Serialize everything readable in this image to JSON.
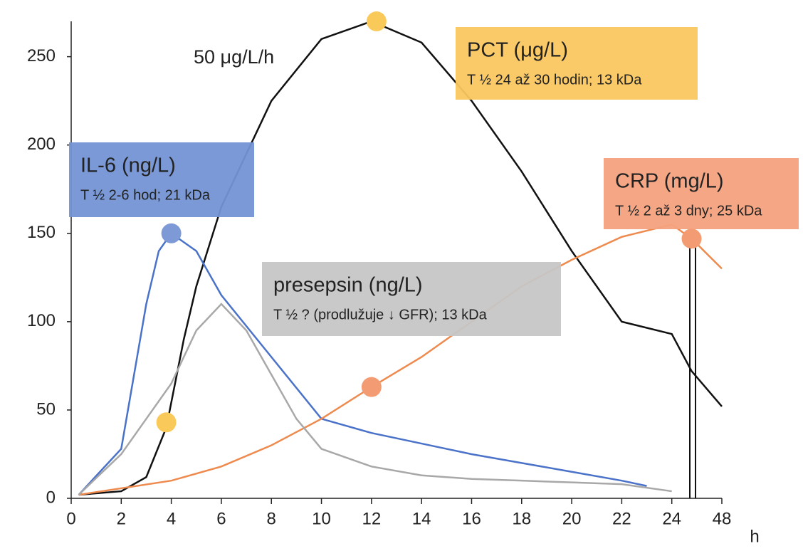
{
  "chart_data": {
    "type": "line",
    "xticks": [
      0,
      2,
      4,
      6,
      8,
      10,
      12,
      14,
      16,
      18,
      20,
      22,
      24,
      48
    ],
    "xlabel": "h",
    "ylim": [
      0,
      270
    ],
    "yticks": [
      0,
      50,
      100,
      150,
      200,
      250
    ],
    "annotation": "50 μg/L/h",
    "series": [
      {
        "name": "PCT (μg/L)",
        "note": "T ½ 24 až 30 hodin; 13 kDa",
        "color": "#111111",
        "box_color": "#fbc760",
        "x": [
          0.3,
          2,
          3,
          3.8,
          4.5,
          5,
          6,
          8,
          10,
          12,
          14,
          16,
          18,
          20,
          22,
          24,
          33.5,
          48
        ],
        "values": [
          2,
          4,
          12,
          40,
          90,
          120,
          165,
          225,
          260,
          270,
          258,
          225,
          185,
          140,
          100,
          93,
          72,
          52
        ]
      },
      {
        "name": "IL-6 (ng/L)",
        "note": "T ½ 2-6 hod; 21 kDa",
        "color": "#4a72c8",
        "box_color": "#7393d4",
        "x": [
          0.3,
          2,
          3,
          3.5,
          4,
          5,
          6,
          8,
          10,
          12,
          14,
          16,
          18,
          20,
          22,
          23
        ],
        "values": [
          2,
          28,
          110,
          140,
          150,
          140,
          115,
          80,
          45,
          37,
          31,
          25,
          20,
          15,
          10,
          7
        ]
      },
      {
        "name": "CRP (mg/L)",
        "note": "T ½ 2 až 3 dny; 25 kDa",
        "color": "#ee8a4e",
        "box_color": "#f4a27e",
        "x": [
          0.3,
          4,
          6,
          8,
          10,
          12,
          14,
          16,
          18,
          20,
          22,
          24,
          33.5,
          48
        ],
        "values": [
          2,
          10,
          18,
          30,
          45,
          63,
          80,
          100,
          120,
          135,
          148,
          155,
          147,
          130
        ]
      },
      {
        "name": "presepsin (ng/L)",
        "note": "T ½ ? (prodlužuje ↓ GFR); 13 kDa",
        "color": "#a8a8a8",
        "box_color": "#c6c6c6",
        "x": [
          0.3,
          2,
          3,
          4,
          5,
          6,
          7,
          8,
          9,
          10,
          12,
          14,
          16,
          18,
          20,
          22,
          24
        ],
        "values": [
          2,
          25,
          45,
          65,
          95,
          110,
          95,
          70,
          45,
          28,
          18,
          13,
          11,
          10,
          9,
          8,
          4
        ]
      }
    ],
    "markers": [
      {
        "x": 3.8,
        "y": 43,
        "color": "#f9c95a"
      },
      {
        "x": 12.2,
        "y": 270,
        "color": "#f9c95a"
      },
      {
        "x": 4,
        "y": 150,
        "color": "#7e9ad6"
      },
      {
        "x": 12,
        "y": 63,
        "color": "#f39b72"
      },
      {
        "x": 33.5,
        "y": 147,
        "color": "#f39b72"
      }
    ]
  }
}
